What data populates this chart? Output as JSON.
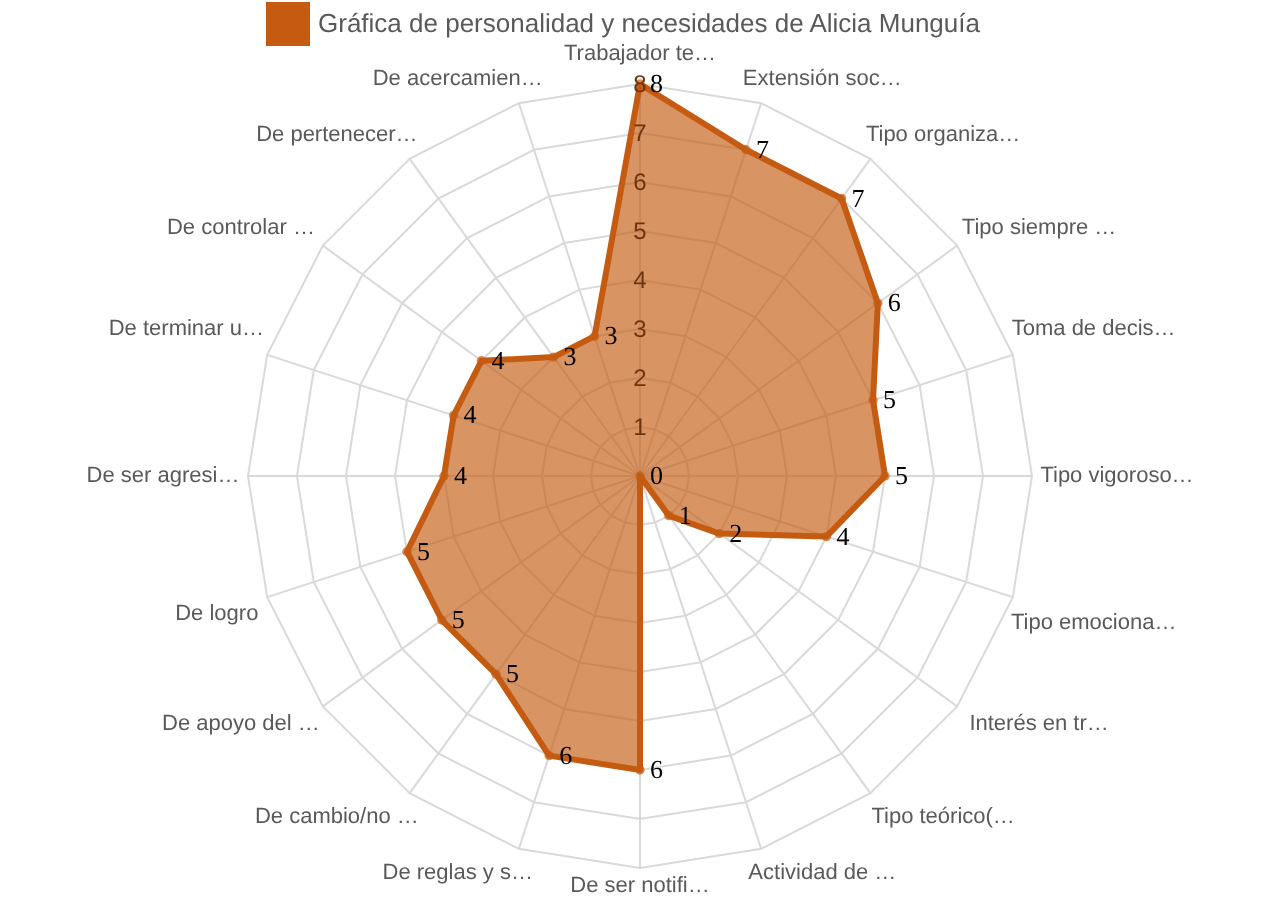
{
  "chart_data": {
    "type": "radar",
    "categories": [
      "Trabajador te…",
      "Extensión soc…",
      "Tipo organiza…",
      "Tipo siempre …",
      "Toma de decis…",
      "Tipo vigoroso…",
      "Tipo emociona…",
      "Interés en tr…",
      "Tipo teórico(…",
      "Actividad de …",
      "De ser notifi…",
      "De reglas y s…",
      "De cambio/no …",
      "De apoyo del …",
      "De logro",
      "De ser agresi…",
      "De terminar u…",
      "De controlar …",
      "De pertenecer…",
      "De acercamien…"
    ],
    "series": [
      {
        "name": "Gráfica de personalidad y necesidades de Alicia Munguía",
        "color": "#c55a11",
        "values": [
          8,
          7,
          7,
          6,
          5,
          5,
          4,
          2,
          1,
          0,
          6,
          6,
          5,
          5,
          5,
          4,
          4,
          4,
          3,
          3
        ]
      }
    ],
    "ylim": [
      0,
      8
    ],
    "yticks": [
      1,
      2,
      3,
      4,
      5,
      6,
      7,
      8
    ],
    "data_labels": true,
    "legend": "top",
    "grid": true,
    "marker": "circle"
  }
}
